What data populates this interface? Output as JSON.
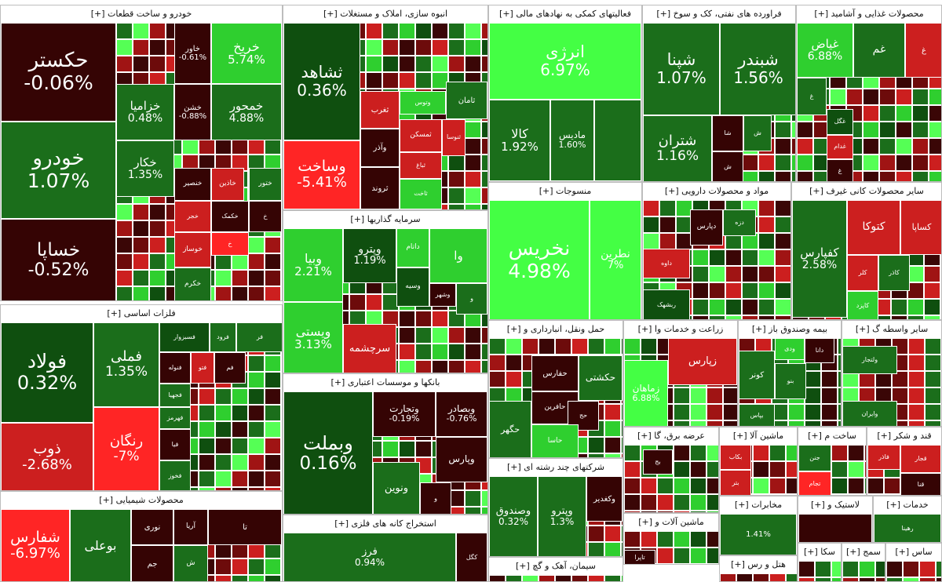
{
  "colors": {
    "dr": "#350404",
    "red": "#cc1f1f",
    "bred": "#ff2525",
    "g": "#1b6e1b",
    "dg": "#0f4f0f",
    "lg": "#2fcf2f",
    "bg": "#44ff44",
    "gray": "#ffffff"
  },
  "sectors": [
    {
      "title": "خودرو و ساخت قطعات [+]",
      "tiles": [
        {
          "n": "حکستر",
          "p": "-0.06%",
          "c": "dr"
        },
        {
          "n": "خودرو",
          "p": "1.07%",
          "c": "g"
        },
        {
          "n": "خساپا",
          "p": "-0.52%",
          "c": "dr"
        },
        {
          "n": "خاور",
          "p": "-0.61%",
          "c": "dr"
        },
        {
          "n": "خریخ",
          "p": "5.74%",
          "c": "lg"
        },
        {
          "n": "خزامیا",
          "p": "0.48%",
          "c": "g"
        },
        {
          "n": "خشن",
          "p": "-0.88%",
          "c": "dr"
        },
        {
          "n": "خمحور",
          "p": "4.88%",
          "c": "g"
        },
        {
          "n": "خکار",
          "p": "1.35%",
          "c": "g"
        },
        {
          "n": "خنصیر",
          "c": "dr"
        },
        {
          "n": "خاذین",
          "c": "red"
        },
        {
          "n": "ختور",
          "c": "g"
        },
        {
          "n": "خجر",
          "c": "red"
        },
        {
          "n": "خکمک",
          "c": "dr"
        },
        {
          "n": "خ",
          "c": "dr"
        },
        {
          "n": "خوساز",
          "c": "red"
        },
        {
          "n": "خ",
          "c": "bred"
        },
        {
          "n": "خکرم",
          "c": "g"
        }
      ]
    },
    {
      "title": "انبوه سازی، املاک و مستغلات [+]",
      "tiles": [
        {
          "n": "ثشاهد",
          "p": "0.36%",
          "c": "dg"
        },
        {
          "n": "وساخت",
          "p": "-5.41%",
          "c": "bred"
        },
        {
          "n": "ثغرب",
          "c": "red"
        },
        {
          "n": "ثامان",
          "c": "g"
        },
        {
          "n": "وتوس",
          "c": "lg"
        },
        {
          "n": "ثمسکن",
          "c": "red"
        },
        {
          "n": "ثباغ",
          "c": "red"
        },
        {
          "n": "وآذر",
          "c": "dr"
        },
        {
          "n": "ثنوسا",
          "c": "red"
        },
        {
          "n": "ثاخت",
          "c": "lg"
        },
        {
          "n": "ثروند",
          "c": "dr"
        }
      ]
    },
    {
      "title": "فعالیتهای کمکی به نهادهای مالی [+]",
      "tiles": [
        {
          "n": "انرژی",
          "p": "6.97%",
          "c": "bg"
        },
        {
          "n": "کالا",
          "p": "1.92%",
          "c": "g"
        },
        {
          "n": "مادیس",
          "p": "1.60%",
          "c": "g"
        },
        {
          "n": "",
          "c": "g"
        }
      ]
    },
    {
      "title": "فراورده های نفتی، کک و سوخ [+]",
      "tiles": [
        {
          "n": "شپنا",
          "p": "1.07%",
          "c": "g"
        },
        {
          "n": "شبندر",
          "p": "1.56%",
          "c": "g"
        },
        {
          "n": "شتران",
          "p": "1.16%",
          "c": "g"
        },
        {
          "n": "شا",
          "c": "dr"
        },
        {
          "n": "ش",
          "c": "g"
        },
        {
          "n": "ش",
          "c": "dr"
        }
      ]
    },
    {
      "title": "محصولات غذایی و آشامید [+]",
      "tiles": [
        {
          "n": "غیاض",
          "p": "6.88%",
          "c": "lg"
        },
        {
          "n": "غم",
          "c": "g"
        },
        {
          "n": "غ",
          "c": "red"
        },
        {
          "n": "غ",
          "c": "g"
        },
        {
          "n": "غگل",
          "c": "dg"
        },
        {
          "n": "غدام",
          "c": "red"
        },
        {
          "n": "غ",
          "c": "dr"
        }
      ]
    },
    {
      "title": "منسوجات [+]",
      "tiles": [
        {
          "n": "نخریس",
          "p": "4.98%",
          "c": "bg"
        },
        {
          "n": "نطرین",
          "p": "7%",
          "c": "bg"
        }
      ]
    },
    {
      "title": "مواد و محصولات دارویی [+]",
      "tiles": [
        {
          "n": "دپارس",
          "c": "dr"
        },
        {
          "n": "دزه",
          "c": "g"
        },
        {
          "n": "داوه",
          "c": "red"
        },
        {
          "n": "ربشهک",
          "c": "dg"
        }
      ]
    },
    {
      "title": "سایر محصولات کانی غیرف [+]",
      "tiles": [
        {
          "n": "کفپارس",
          "p": "2.58%",
          "c": "g"
        },
        {
          "n": "کتوکا",
          "c": "red"
        },
        {
          "n": "کساپا",
          "c": "red"
        },
        {
          "n": "کلر",
          "c": "red"
        },
        {
          "n": "کاذر",
          "c": "g"
        },
        {
          "n": "کاپزد",
          "c": "lg"
        }
      ]
    },
    {
      "title": "فلزات اساسی [+]",
      "tiles": [
        {
          "n": "فولاد",
          "p": "0.32%",
          "c": "dg"
        },
        {
          "n": "ذوب",
          "p": "-2.68%",
          "c": "red"
        },
        {
          "n": "فملی",
          "p": "1.35%",
          "c": "g"
        },
        {
          "n": "رنگان",
          "p": "-7%",
          "c": "bred"
        },
        {
          "n": "فسبزوار",
          "c": "dg"
        },
        {
          "n": "فرود",
          "c": "g"
        },
        {
          "n": "فر",
          "c": "g"
        },
        {
          "n": "فنوله",
          "c": "dr"
        },
        {
          "n": "فتو",
          "c": "red"
        },
        {
          "n": "فم",
          "c": "dr"
        },
        {
          "n": "فجهیا",
          "c": "g"
        },
        {
          "n": "فهرمز",
          "c": "g"
        },
        {
          "n": "فیا",
          "c": "dr"
        },
        {
          "n": "فخوز",
          "c": "g"
        }
      ]
    },
    {
      "title": "سرمایه گذاریها [+]",
      "tiles": [
        {
          "n": "وبیا",
          "p": "2.21%",
          "c": "lg"
        },
        {
          "n": "ویستی",
          "p": "3.13%",
          "c": "lg"
        },
        {
          "n": "وپترو",
          "p": "1.19%",
          "c": "dg"
        },
        {
          "n": "داتام",
          "c": "lg"
        },
        {
          "n": "وا",
          "c": "lg"
        },
        {
          "n": "وسیه",
          "c": "dg"
        },
        {
          "n": "وشهر",
          "c": "dr"
        },
        {
          "n": "سرچشمه",
          "c": "red"
        },
        {
          "n": "و",
          "c": "g"
        }
      ]
    },
    {
      "title": "بانکها و موسسات اعتباری [+]",
      "tiles": [
        {
          "n": "وبملت",
          "p": "0.16%",
          "c": "dg"
        },
        {
          "n": "وتجارت",
          "p": "-0.19%",
          "c": "dr"
        },
        {
          "n": "وبصادر",
          "p": "-0.76%",
          "c": "dr"
        },
        {
          "n": "وپارس",
          "c": "dr"
        },
        {
          "n": "ونوین",
          "c": "g"
        },
        {
          "n": "و",
          "c": "dr"
        }
      ]
    },
    {
      "title": "حمل ونقل، انبارداری و [+]",
      "tiles": [
        {
          "n": "حکشتی",
          "c": "g"
        },
        {
          "n": "حفارس",
          "c": "dr"
        },
        {
          "n": "حافرین",
          "c": "dr"
        },
        {
          "n": "حج",
          "c": "dr"
        },
        {
          "n": "حگهر",
          "c": "g"
        },
        {
          "n": "حاسا",
          "c": "lg"
        }
      ]
    },
    {
      "title": "زراعت و خدمات وا [+]",
      "tiles": [
        {
          "n": "زماهان",
          "p": "6.88%",
          "c": "bg"
        },
        {
          "n": "زپارس",
          "c": "red"
        }
      ]
    },
    {
      "title": "بیمه وصندوق باز [+]",
      "tiles": [
        {
          "n": "ودی",
          "c": "lg"
        },
        {
          "n": "دانا",
          "c": "dr"
        },
        {
          "n": "کونر",
          "c": "g"
        },
        {
          "n": "بنو",
          "c": "g"
        },
        {
          "n": "بپاس",
          "c": "g"
        }
      ]
    },
    {
      "title": "سایر واسطه گ [+]",
      "tiles": [
        {
          "n": "ولتجار",
          "c": "g"
        },
        {
          "n": "وایران",
          "c": "g"
        }
      ]
    },
    {
      "title": "محصولات شیمیایی [+]",
      "tiles": [
        {
          "n": "شفارس",
          "p": "-6.97%",
          "c": "bred"
        },
        {
          "n": "بوعلی",
          "c": "g"
        },
        {
          "n": "نوری",
          "c": "dr"
        },
        {
          "n": "آریا",
          "c": "dr"
        },
        {
          "n": "تا",
          "c": "dr"
        },
        {
          "n": "جم",
          "c": "dr"
        },
        {
          "n": "ش",
          "c": "g"
        }
      ]
    },
    {
      "title": "استخراج کانه های فلزی [+]",
      "tiles": [
        {
          "n": "فرز",
          "p": "0.94%",
          "c": "g"
        },
        {
          "n": "کگل",
          "c": "dr"
        }
      ]
    },
    {
      "title": "شرکتهای چند رشته ای [+]",
      "tiles": [
        {
          "n": "وصندوق",
          "p": "0.32%",
          "c": "g"
        },
        {
          "n": "وپترو",
          "p": "1.3%",
          "c": "g"
        },
        {
          "n": "وکغدیر",
          "c": "dr"
        }
      ]
    },
    {
      "title": "سیمان، آهک و گچ [+]",
      "tiles": []
    },
    {
      "title": "عرضه برق، گا [+]",
      "tiles": [
        {
          "n": "بج",
          "c": "dr"
        }
      ]
    },
    {
      "title": "ماشین آلا [+]",
      "tiles": [
        {
          "n": "بکاب",
          "c": "red"
        },
        {
          "n": "بتر",
          "c": "red"
        }
      ]
    },
    {
      "title": "ساخت م [+]",
      "tiles": [
        {
          "n": "جنن",
          "c": "g"
        },
        {
          "n": "تجام",
          "c": "bred"
        }
      ]
    },
    {
      "title": "قند و شکر [+]",
      "tiles": [
        {
          "n": "فاذر",
          "c": "red"
        },
        {
          "n": "قجار",
          "c": "red"
        },
        {
          "n": "قنا",
          "c": "dr"
        }
      ]
    },
    {
      "title": "ماشین آلات و [+]",
      "tiles": [
        {
          "n": "تاپرا",
          "c": "dr"
        }
      ]
    },
    {
      "title": "مخابرات [+]",
      "tiles": [
        {
          "n": "",
          "p": "1.41%",
          "c": "g"
        }
      ]
    },
    {
      "title": "لاستیک و [+]",
      "tiles": [
        {
          "n": "",
          "c": "dr"
        }
      ]
    },
    {
      "title": "خدمات [+]",
      "tiles": [
        {
          "n": "رهینا",
          "c": "g"
        }
      ]
    },
    {
      "title": "هتل و رس [+]",
      "tiles": []
    },
    {
      "title": "سکا [+]",
      "tiles": []
    },
    {
      "title": "سمج [+]",
      "tiles": []
    },
    {
      "title": "ساس [+]",
      "tiles": []
    }
  ]
}
